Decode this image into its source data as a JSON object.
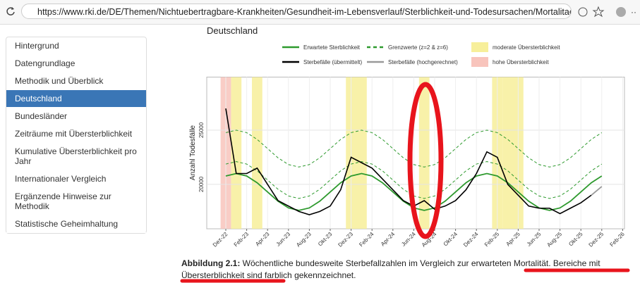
{
  "browser": {
    "url": "https://www.rki.de/DE/Themen/Nichtuebertragbare-Krankheiten/Gesundheit-im-Lebensverlauf/Sterblichkeit-und-Todesursachen/Mortalitaetssurve..."
  },
  "nav": [
    "Hintergrund",
    "Datengrundlage",
    "Methodik und Überblick",
    "Deutschland",
    "Bundesländer",
    "Zeiträume mit Übersterblichkeit",
    "Kumulative Übersterblichkeit pro Jahr",
    "Internationaler Vergleich",
    "Ergänzende Hinweise zur Methodik",
    "Statistische Geheimhaltung"
  ],
  "nav_active": 3,
  "heading": "Deutschland",
  "caption": {
    "label": "Abbildung 2.1:",
    "text": "Wöchentliche bundesweite Sterbefallzahlen im Vergleich zur erwarteten Mortalität. Bereiche mit Übersterblichkeit sind farblich gekennzeichnet."
  },
  "chart_data": {
    "type": "line",
    "y_label": "Anzahl Todesfälle",
    "categories": [
      "Dez-22",
      null,
      "Feb-23",
      null,
      "Apr-23",
      null,
      "Jun-23",
      null,
      "Aug-23",
      null,
      "Okt-23",
      null,
      "Dez-23",
      null,
      "Feb-24",
      null,
      "Apr-24",
      null,
      "Jun-24",
      null,
      "Aug-24",
      null,
      "Okt-24",
      null,
      "Dez-24",
      null,
      "Feb-25",
      null,
      "Apr-25",
      null,
      "Jun-25",
      null,
      "Aug-25",
      null,
      "Okt-25",
      null,
      "Dez-25",
      null,
      "Feb-26"
    ],
    "ylim": [
      15900,
      29900
    ],
    "yticks": [
      20000,
      25000
    ],
    "grid": true,
    "series": [
      {
        "name": "Erwartete Sterblichkeit",
        "color": "#2e9a2e",
        "values": [
          20772,
          21000,
          20772,
          20150,
          19300,
          18450,
          17828,
          17600,
          17828,
          18450,
          19300,
          20150,
          20772,
          21000,
          20772,
          20150,
          19300,
          18450,
          17828,
          17600,
          17828,
          18450,
          19300,
          20150,
          20772,
          21000,
          20772,
          20150,
          19300,
          18450,
          17828,
          17600,
          17828,
          18450,
          19300,
          20150,
          20772,
          null,
          null
        ]
      },
      {
        "name": "Grenzwerte (z=2 & z=6)",
        "color": "#2e9a2e",
        "dashed": true,
        "values_z2": [
          21872,
          22100,
          21872,
          21250,
          20400,
          19550,
          18928,
          18700,
          18928,
          19550,
          20400,
          21250,
          21872,
          22100,
          21872,
          21250,
          20400,
          19550,
          18928,
          18700,
          18928,
          19550,
          20400,
          21250,
          21872,
          22100,
          21872,
          21250,
          20400,
          19550,
          18928,
          18700,
          18928,
          19550,
          20400,
          21250,
          21872,
          null,
          null
        ],
        "values_z6": [
          24772,
          25000,
          24772,
          24150,
          23300,
          22450,
          21828,
          21600,
          21828,
          22450,
          23300,
          24150,
          24772,
          25000,
          24772,
          24150,
          23300,
          22450,
          21828,
          21600,
          21828,
          22450,
          23300,
          24150,
          24772,
          25000,
          24772,
          24150,
          23300,
          22450,
          21828,
          21600,
          21828,
          22450,
          23300,
          24150,
          24772,
          null,
          null
        ]
      },
      {
        "name": "Sterbefälle (übermittelt)",
        "color": "#000000",
        "values": [
          27000,
          21000,
          21000,
          21500,
          20000,
          18500,
          18000,
          17500,
          17200,
          17500,
          18000,
          19500,
          22500,
          22000,
          21500,
          20500,
          19500,
          18500,
          18000,
          18500,
          17700,
          18000,
          18500,
          19500,
          21000,
          23000,
          22500,
          20000,
          19000,
          18000,
          17800,
          17800,
          17300,
          17800,
          18300,
          19000,
          null,
          null,
          null
        ]
      },
      {
        "name": "Sterbefälle (hochgerechnet)",
        "color": "#999999",
        "values": [
          null,
          null,
          null,
          null,
          null,
          null,
          null,
          null,
          null,
          null,
          null,
          null,
          null,
          null,
          null,
          null,
          null,
          null,
          null,
          null,
          null,
          null,
          null,
          null,
          null,
          null,
          null,
          null,
          null,
          null,
          null,
          null,
          null,
          null,
          null,
          19000,
          19800,
          null,
          null
        ]
      }
    ],
    "shading": [
      {
        "name": "moderate Übersterblichkeit",
        "color": "#f7ef9a",
        "shaded": [
          false,
          true,
          false,
          true,
          false,
          false,
          false,
          false,
          false,
          false,
          false,
          false,
          true,
          true,
          false,
          false,
          false,
          false,
          false,
          true,
          false,
          false,
          false,
          false,
          false,
          false,
          true,
          true,
          true,
          false,
          false,
          false,
          false,
          false,
          false,
          false,
          false,
          false,
          false
        ]
      },
      {
        "name": "hohe Übersterblichkeit",
        "color": "#f8c4bc",
        "shaded": [
          true,
          false,
          false,
          false,
          false,
          false,
          false,
          false,
          false,
          false,
          false,
          false,
          false,
          false,
          false,
          false,
          false,
          false,
          false,
          false,
          false,
          false,
          false,
          false,
          false,
          false,
          false,
          false,
          false,
          false,
          false,
          false,
          false,
          false,
          false,
          false,
          false,
          false,
          false
        ]
      }
    ]
  }
}
